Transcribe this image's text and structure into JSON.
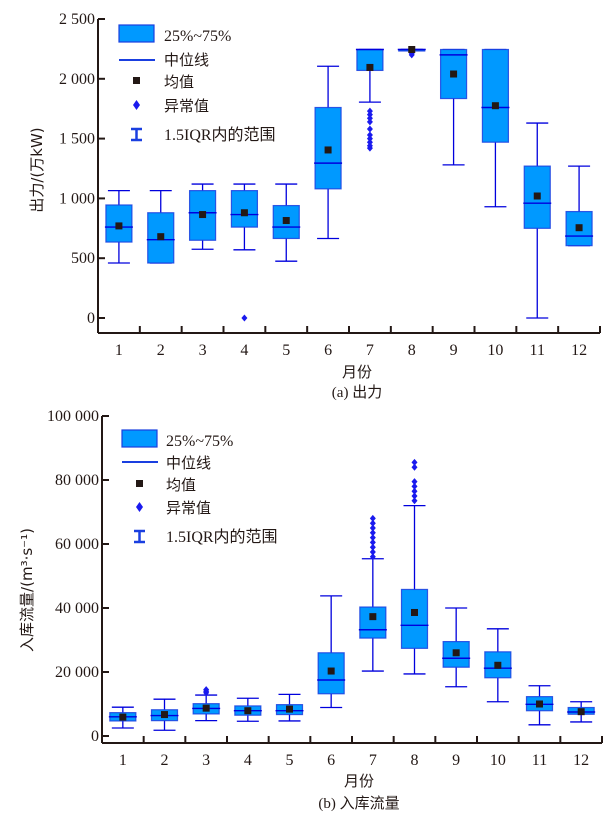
{
  "colors": {
    "box_fill": "#0099ff",
    "box_stroke": "#1a3fe0",
    "line": "#0000dd",
    "mean": "#231815",
    "outlier": "#1a1aee",
    "axis": "#231815"
  },
  "legend": {
    "box": "25%~75%",
    "median": "中位线",
    "mean": "均值",
    "outlier": "异常值",
    "whisker": "1.5IQR内的范围"
  },
  "chart_data": [
    {
      "type": "box",
      "caption": "(a) 出力",
      "xlabel": "月份",
      "ylabel": "出力/(万kW)",
      "ylim": [
        -100,
        2500
      ],
      "yticks": [
        0,
        500,
        1000,
        1500,
        2000,
        2500
      ],
      "ytick_labels": [
        "0",
        "500",
        "1 000",
        "1 500",
        "2 000",
        "2 500"
      ],
      "categories": [
        "1",
        "2",
        "3",
        "4",
        "5",
        "6",
        "7",
        "8",
        "9",
        "10",
        "11",
        "12"
      ],
      "legend_position": "top-left",
      "boxes": [
        {
          "month": "1",
          "whisker_low": 460,
          "q1": 635,
          "median": 760,
          "q3": 945,
          "whisker_high": 1065,
          "mean": 770,
          "outliers": []
        },
        {
          "month": "2",
          "whisker_low": 460,
          "q1": 460,
          "median": 655,
          "q3": 880,
          "whisker_high": 1065,
          "mean": 680,
          "outliers": []
        },
        {
          "month": "3",
          "whisker_low": 575,
          "q1": 650,
          "median": 880,
          "q3": 1065,
          "whisker_high": 1120,
          "mean": 865,
          "outliers": []
        },
        {
          "month": "4",
          "whisker_low": 570,
          "q1": 760,
          "median": 865,
          "q3": 1065,
          "whisker_high": 1120,
          "mean": 880,
          "outliers": [
            0
          ]
        },
        {
          "month": "5",
          "whisker_low": 475,
          "q1": 665,
          "median": 760,
          "q3": 940,
          "whisker_high": 1120,
          "mean": 815,
          "outliers": []
        },
        {
          "month": "6",
          "whisker_low": 665,
          "q1": 1080,
          "median": 1295,
          "q3": 1760,
          "whisker_high": 2105,
          "mean": 1405,
          "outliers": []
        },
        {
          "month": "7",
          "whisker_low": 1805,
          "q1": 2070,
          "median": 2245,
          "q3": 2245,
          "whisker_high": 2245,
          "mean": 2095,
          "outliers": [
            1730,
            1700,
            1670,
            1640,
            1580,
            1530,
            1500,
            1470,
            1440,
            1420
          ]
        },
        {
          "month": "8",
          "whisker_low": 2245,
          "q1": 2245,
          "median": 2245,
          "q3": 2245,
          "whisker_high": 2245,
          "mean": 2245,
          "outliers": [
            2230,
            2215,
            2200
          ]
        },
        {
          "month": "9",
          "whisker_low": 1280,
          "q1": 1835,
          "median": 2200,
          "q3": 2245,
          "whisker_high": 2245,
          "mean": 2040,
          "outliers": []
        },
        {
          "month": "10",
          "whisker_low": 930,
          "q1": 1470,
          "median": 1760,
          "q3": 2245,
          "whisker_high": 2245,
          "mean": 1775,
          "outliers": []
        },
        {
          "month": "11",
          "whisker_low": 0,
          "q1": 750,
          "median": 960,
          "q3": 1270,
          "whisker_high": 1630,
          "mean": 1020,
          "outliers": []
        },
        {
          "month": "12",
          "whisker_low": 605,
          "q1": 605,
          "median": 685,
          "q3": 890,
          "whisker_high": 1270,
          "mean": 755,
          "outliers": []
        }
      ]
    },
    {
      "type": "box",
      "caption": "(b) 入库流量",
      "xlabel": "月份",
      "ylabel": "入库流量/(m³·s⁻¹)",
      "ylim": [
        -2000,
        100000
      ],
      "yticks": [
        0,
        20000,
        40000,
        60000,
        80000,
        100000
      ],
      "ytick_labels": [
        "0",
        "20 000",
        "40 000",
        "60 000",
        "80 000",
        "100 000"
      ],
      "categories": [
        "1",
        "2",
        "3",
        "4",
        "5",
        "6",
        "7",
        "8",
        "9",
        "10",
        "11",
        "12"
      ],
      "legend_position": "top-left",
      "boxes": [
        {
          "month": "1",
          "whisker_low": 2500,
          "q1": 4700,
          "median": 6000,
          "q3": 7300,
          "whisker_high": 9000,
          "mean": 5900,
          "outliers": []
        },
        {
          "month": "2",
          "whisker_low": 1800,
          "q1": 4800,
          "median": 6400,
          "q3": 8200,
          "whisker_high": 11500,
          "mean": 6700,
          "outliers": []
        },
        {
          "month": "3",
          "whisker_low": 4800,
          "q1": 6900,
          "median": 8600,
          "q3": 10100,
          "whisker_high": 12800,
          "mean": 8700,
          "outliers": [
            13500,
            14000,
            14500
          ]
        },
        {
          "month": "4",
          "whisker_low": 4600,
          "q1": 6500,
          "median": 7900,
          "q3": 9400,
          "whisker_high": 11800,
          "mean": 7900,
          "outliers": []
        },
        {
          "month": "5",
          "whisker_low": 4700,
          "q1": 6700,
          "median": 7900,
          "q3": 9800,
          "whisker_high": 13000,
          "mean": 8400,
          "outliers": []
        },
        {
          "month": "6",
          "whisker_low": 8900,
          "q1": 13200,
          "median": 17500,
          "q3": 26000,
          "whisker_high": 43800,
          "mean": 20300,
          "outliers": []
        },
        {
          "month": "7",
          "whisker_low": 20300,
          "q1": 30600,
          "median": 33200,
          "q3": 40300,
          "whisker_high": 55400,
          "mean": 37300,
          "outliers": [
            56000,
            57500,
            59000,
            60500,
            62000,
            63500,
            65000,
            66500,
            68000
          ]
        },
        {
          "month": "8",
          "whisker_low": 19400,
          "q1": 27400,
          "median": 34600,
          "q3": 45800,
          "whisker_high": 72000,
          "mean": 38600,
          "outliers": [
            73500,
            75000,
            76500,
            78000,
            79500,
            84000,
            85500
          ]
        },
        {
          "month": "9",
          "whisker_low": 15400,
          "q1": 21500,
          "median": 24300,
          "q3": 29500,
          "whisker_high": 40000,
          "mean": 26000,
          "outliers": []
        },
        {
          "month": "10",
          "whisker_low": 10700,
          "q1": 18200,
          "median": 21200,
          "q3": 26300,
          "whisker_high": 33500,
          "mean": 22100,
          "outliers": []
        },
        {
          "month": "11",
          "whisker_low": 3500,
          "q1": 7900,
          "median": 9900,
          "q3": 12300,
          "whisker_high": 15700,
          "mean": 10000,
          "outliers": []
        },
        {
          "month": "12",
          "whisker_low": 4400,
          "q1": 6800,
          "median": 7500,
          "q3": 8900,
          "whisker_high": 10700,
          "mean": 7600,
          "outliers": []
        }
      ]
    }
  ]
}
